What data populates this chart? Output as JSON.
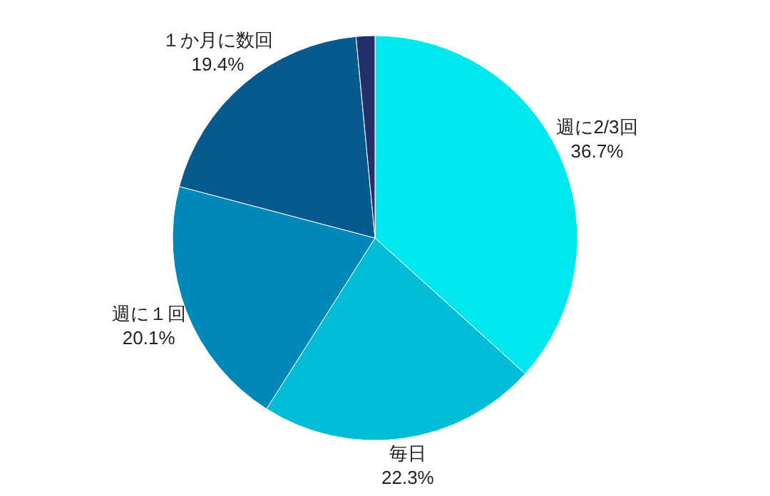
{
  "chart_data": {
    "type": "pie",
    "categories": [
      "週に2/3回",
      "毎日",
      "週に１回",
      "１か月に数回",
      null
    ],
    "values": [
      36.7,
      22.3,
      20.1,
      19.4,
      1.5
    ],
    "value_labels": [
      "36.7%",
      "22.3%",
      "20.1%",
      "19.4%",
      null
    ],
    "colors": [
      "#00e8ee",
      "#00bcd6",
      "#0088b8",
      "#065a8e",
      "#24306a"
    ],
    "legend": false
  }
}
